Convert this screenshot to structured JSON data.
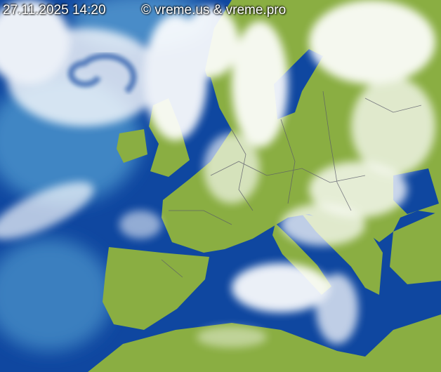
{
  "overlay": {
    "timestamp": "27.11.2025 14:20",
    "copyright": "© vreme.us & vreme.pro"
  },
  "image": {
    "kind": "satellite-composite",
    "region": "Europe",
    "colors": {
      "ocean": "#0f47a0",
      "ocean_light": "#3f86c4",
      "land": "#8aae42",
      "cloud": "#ffffff",
      "border": "#5a5a6a"
    }
  }
}
